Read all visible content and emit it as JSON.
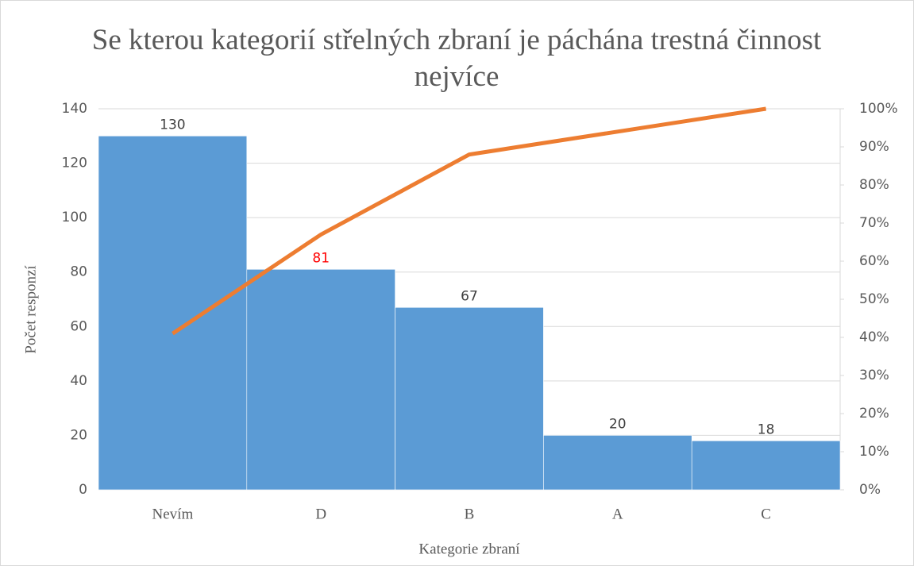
{
  "chart_data": {
    "type": "bar",
    "title": "Se kterou kategorií střelných zbraní je páchána trestná činnost nejvíce",
    "x_label": "Kategorie zbraní",
    "y_label": "Počet responzí",
    "categories": [
      "Nevím",
      "D",
      "B",
      "A",
      "C"
    ],
    "series": [
      {
        "type": "bar",
        "color": "#5b9bd5",
        "values": [
          130,
          81,
          67,
          20,
          18
        ],
        "label_colors": [
          "#404040",
          "#ff0000",
          "#404040",
          "#404040",
          "#404040"
        ]
      },
      {
        "type": "line",
        "axis": "y2",
        "color": "#ed7d31",
        "values": [
          41,
          67,
          88,
          94,
          100
        ]
      }
    ],
    "ylim": [
      0,
      140
    ],
    "yticks": [
      0,
      20,
      40,
      60,
      80,
      100,
      120,
      140
    ],
    "y2lim": [
      0,
      100
    ],
    "y2ticks": [
      {
        "value": 0,
        "label": "0%"
      },
      {
        "value": 10,
        "label": "10%"
      },
      {
        "value": 20,
        "label": "20%"
      },
      {
        "value": 30,
        "label": "30%"
      },
      {
        "value": 40,
        "label": "40%"
      },
      {
        "value": 50,
        "label": "50%"
      },
      {
        "value": 60,
        "label": "60%"
      },
      {
        "value": 70,
        "label": "70%"
      },
      {
        "value": 80,
        "label": "80%"
      },
      {
        "value": 90,
        "label": "90%"
      },
      {
        "value": 100,
        "label": "100%"
      }
    ],
    "grid": true
  }
}
